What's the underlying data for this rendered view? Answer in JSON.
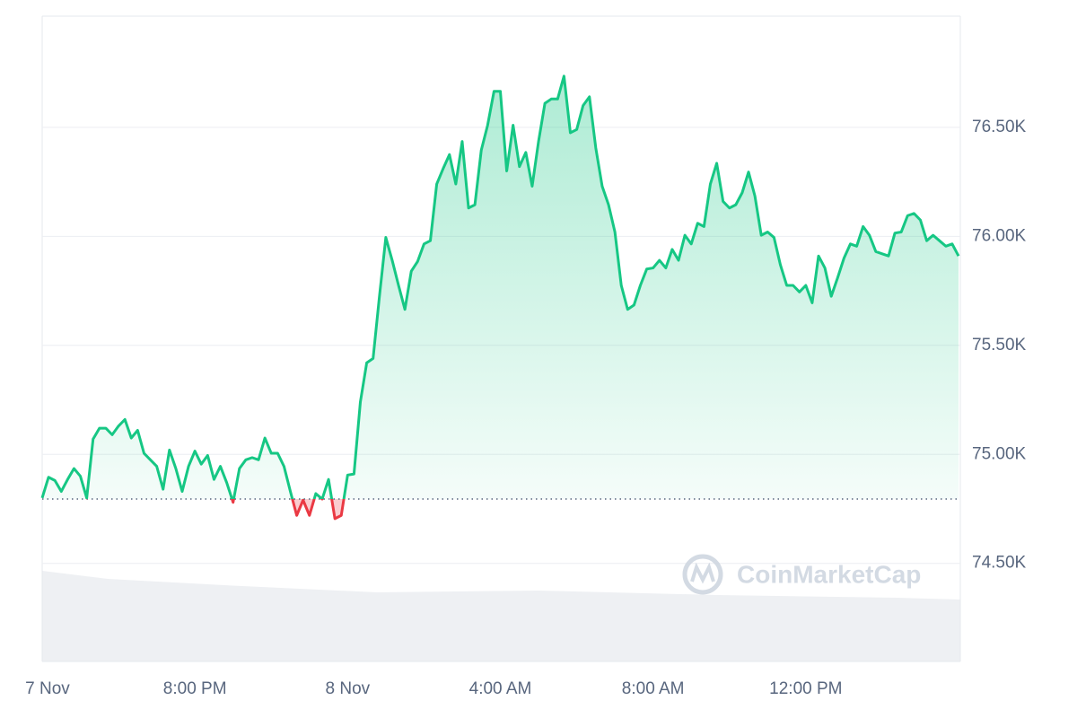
{
  "chart_data": {
    "type": "line",
    "watermark": "CoinMarketCap",
    "categories": [
      "7 Nov",
      null,
      null,
      null,
      null,
      null,
      null,
      null,
      null,
      null,
      null,
      null,
      null,
      null,
      null,
      null,
      null,
      null,
      null,
      null,
      null,
      null,
      null,
      null,
      "8:00 PM",
      null,
      null,
      null,
      null,
      null,
      null,
      null,
      null,
      null,
      null,
      null,
      null,
      null,
      null,
      null,
      null,
      null,
      null,
      null,
      null,
      null,
      null,
      null,
      "8 Nov",
      null,
      null,
      null,
      null,
      null,
      null,
      null,
      null,
      null,
      null,
      null,
      null,
      null,
      null,
      null,
      null,
      null,
      null,
      null,
      null,
      null,
      null,
      null,
      "4:00 AM",
      null,
      null,
      null,
      null,
      null,
      null,
      null,
      null,
      null,
      null,
      null,
      null,
      null,
      null,
      null,
      null,
      null,
      null,
      null,
      null,
      null,
      null,
      null,
      "8:00 AM",
      null,
      null,
      null,
      null,
      null,
      null,
      null,
      null,
      null,
      null,
      null,
      null,
      null,
      null,
      null,
      null,
      null,
      null,
      null,
      null,
      null,
      null,
      null,
      "12:00 PM",
      null,
      null,
      null,
      null,
      null,
      null,
      null,
      null,
      null,
      null,
      null,
      null,
      null,
      null,
      null,
      null,
      null,
      null,
      null,
      null,
      null,
      null,
      null,
      null
    ],
    "values": [
      74800,
      74895,
      74880,
      74830,
      74885,
      74935,
      74900,
      74800,
      75070,
      75120,
      75120,
      75090,
      75130,
      75160,
      75075,
      75110,
      75005,
      74975,
      74945,
      74840,
      75020,
      74935,
      74830,
      74945,
      75015,
      74955,
      74995,
      74885,
      74945,
      74870,
      74780,
      74935,
      74975,
      74985,
      74975,
      75075,
      75005,
      75005,
      74945,
      74830,
      74720,
      74790,
      74720,
      74820,
      74795,
      74885,
      74705,
      74720,
      74905,
      74910,
      75240,
      75420,
      75440,
      75725,
      75995,
      75890,
      75775,
      75665,
      75840,
      75885,
      75965,
      75980,
      76240,
      76310,
      76375,
      76240,
      76435,
      76130,
      76145,
      76395,
      76510,
      76665,
      76665,
      76300,
      76510,
      76320,
      76385,
      76230,
      76435,
      76610,
      76630,
      76630,
      76735,
      76475,
      76490,
      76600,
      76640,
      76405,
      76230,
      76145,
      76020,
      75775,
      75665,
      75685,
      75775,
      75850,
      75855,
      75890,
      75855,
      75940,
      75890,
      76005,
      75965,
      76060,
      76045,
      76240,
      76335,
      76160,
      76130,
      76145,
      76200,
      76295,
      76185,
      76005,
      76020,
      75995,
      75870,
      75775,
      75775,
      75745,
      75775,
      75695,
      75910,
      75855,
      75725,
      75810,
      75900,
      75965,
      75955,
      76045,
      76005,
      75930,
      75920,
      75910,
      76015,
      76020,
      76095,
      76105,
      76075,
      75980,
      76005,
      75980,
      75955,
      75965,
      75910
    ],
    "baseline": 74795,
    "up_color": "#16c784",
    "down_color": "#ea3943",
    "ylim": [
      74050,
      77010
    ],
    "yticks": [
      {
        "value": 74500,
        "label": "74.50K"
      },
      {
        "value": 75000,
        "label": "75.00K"
      },
      {
        "value": 75500,
        "label": "75.50K"
      },
      {
        "value": 76000,
        "label": "76.00K"
      },
      {
        "value": 76500,
        "label": "76.50K"
      }
    ],
    "grid": true
  }
}
